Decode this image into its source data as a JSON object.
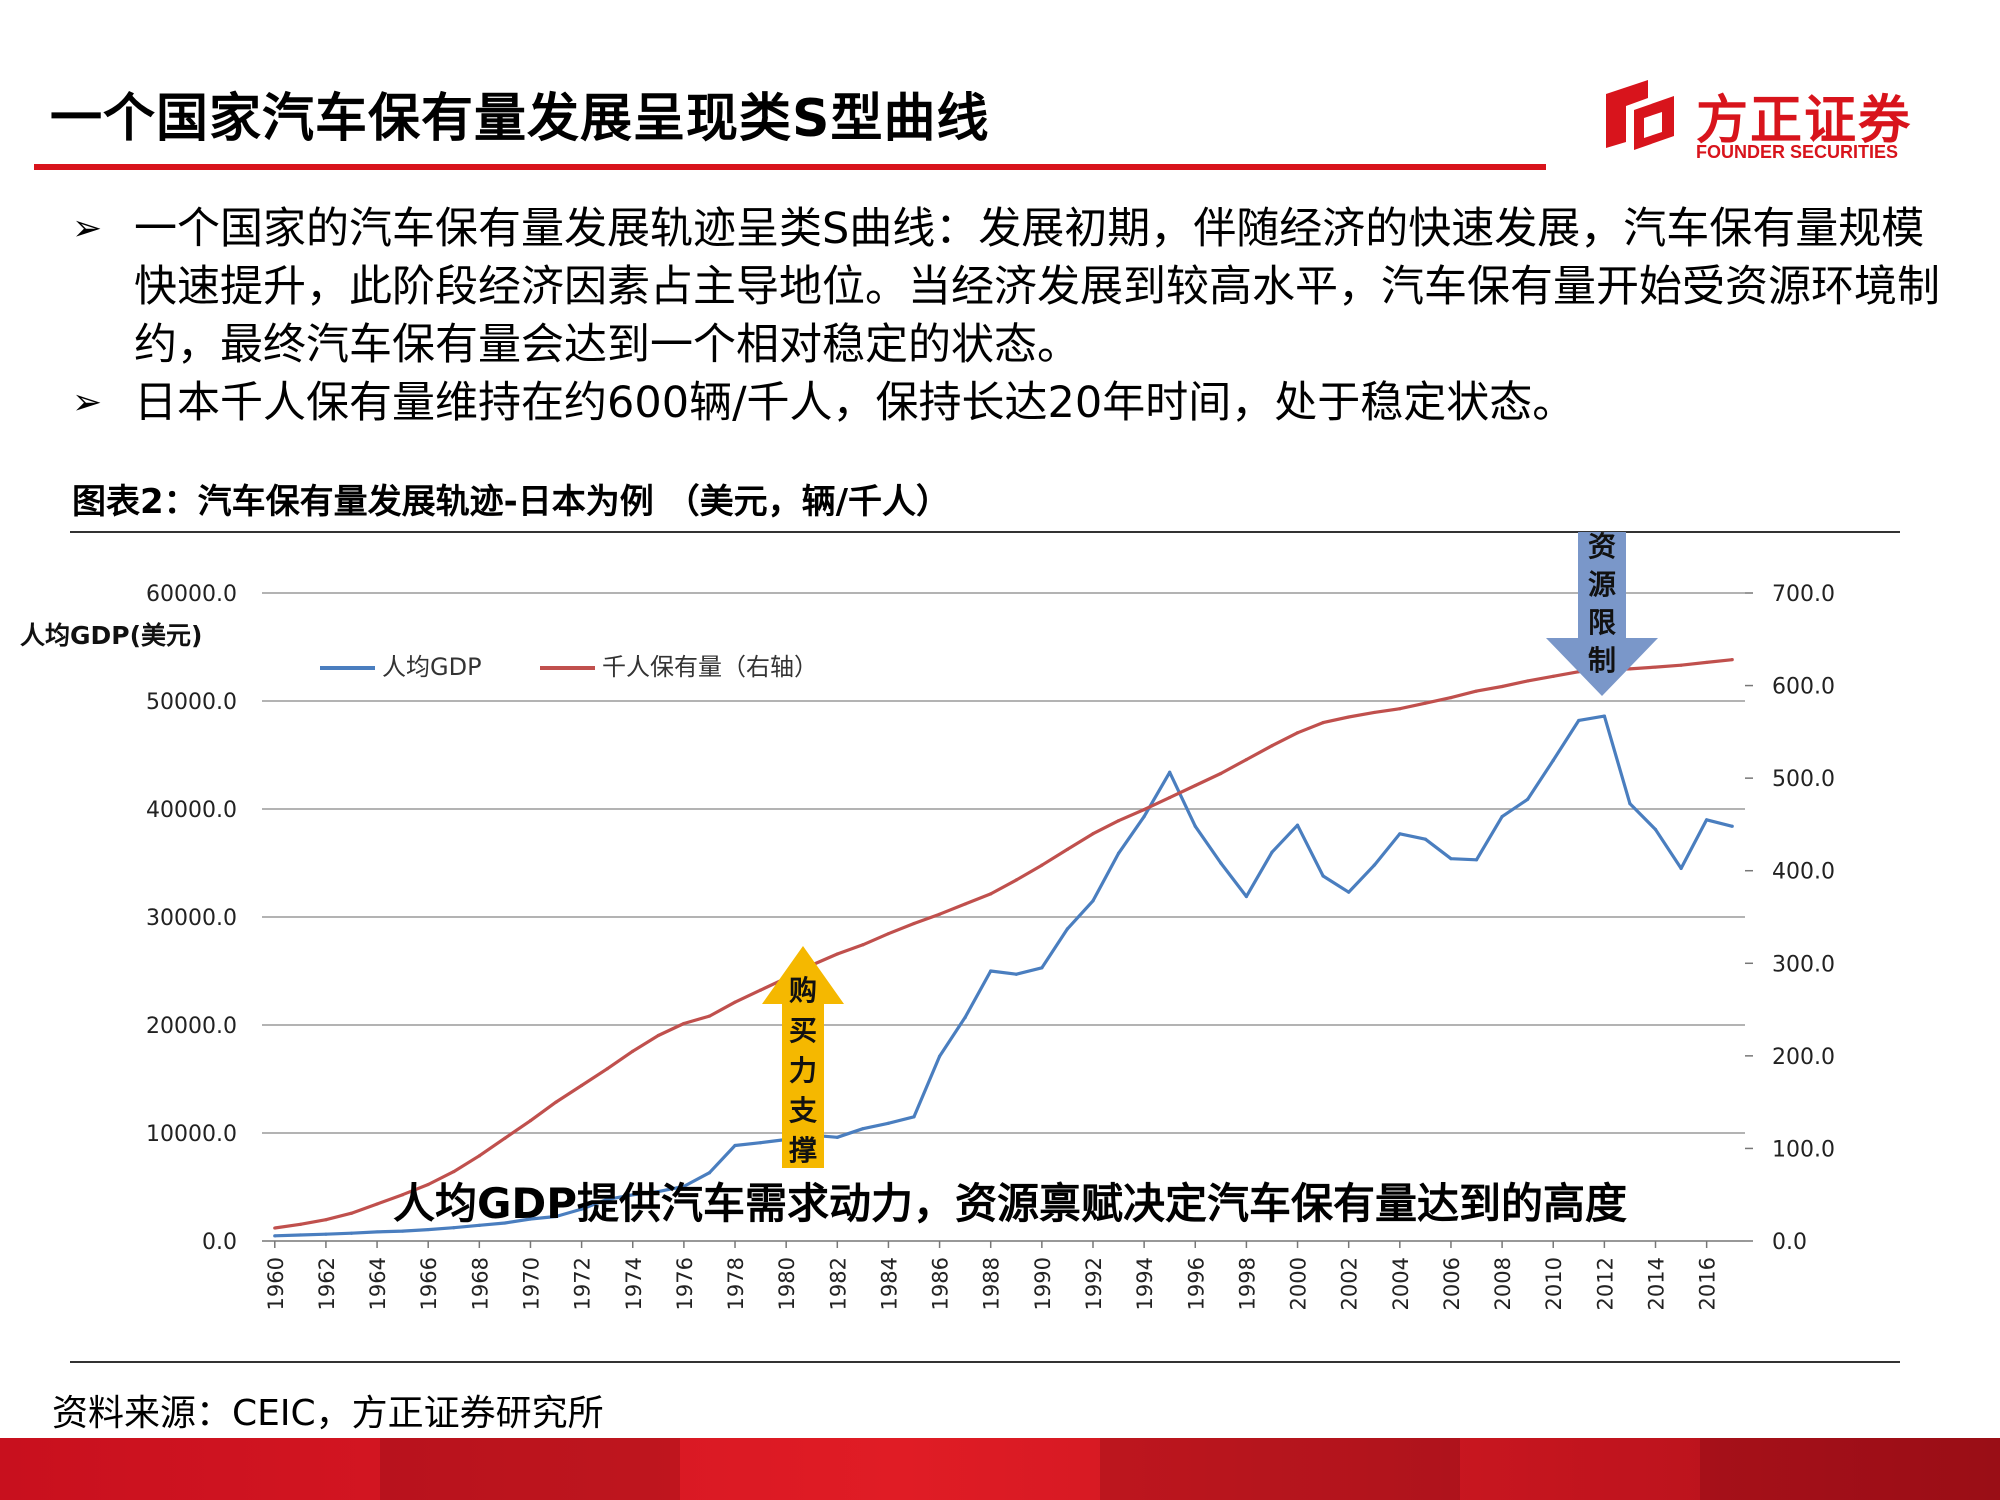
{
  "header": {
    "title": "一个国家汽车保有量发展呈现类S型曲线",
    "logo_cn": "方正证券",
    "logo_en": "FOUNDER SECURITIES"
  },
  "bullets": [
    "一个国家的汽车保有量发展轨迹呈类S曲线：发展初期，伴随经济的快速发展，汽车保有量规模快速提升，此阶段经济因素占主导地位。当经济发展到较高水平，汽车保有量开始受资源环境制约，最终汽车保有量会达到一个相对稳定的状态。",
    "日本千人保有量维持在约600辆/千人，保持长达20年时间，处于稳定状态。"
  ],
  "bullet_mark": "➢",
  "figure_caption": "图表2：汽车保有量发展轨迹-日本为例 （美元，辆/千人）",
  "source": "资料来源：CEIC，方正证券研究所",
  "colors": {
    "accent": "#d8141c",
    "gdp": "#4a7ebf",
    "cars": "#c0504d",
    "arrow_up": "#f5b800",
    "arrow_down": "#7a97c9"
  },
  "chart_data": {
    "type": "line",
    "title": "",
    "ylabel_left": "人均GDP(美元)",
    "ylabel_right": "",
    "ylim_left": [
      0,
      60000
    ],
    "ylim_right": [
      0,
      700
    ],
    "yticks_left": [
      "60000.0",
      "50000.0",
      "40000.0",
      "30000.0",
      "20000.0",
      "10000.0",
      "0.0"
    ],
    "yticks_right": [
      "700.0",
      "600.0",
      "500.0",
      "400.0",
      "300.0",
      "200.0",
      "100.0",
      "0.0"
    ],
    "x": [
      1960,
      1961,
      1962,
      1963,
      1964,
      1965,
      1966,
      1967,
      1968,
      1969,
      1970,
      1971,
      1972,
      1973,
      1974,
      1975,
      1976,
      1977,
      1978,
      1979,
      1980,
      1981,
      1982,
      1983,
      1984,
      1985,
      1986,
      1987,
      1988,
      1989,
      1990,
      1991,
      1992,
      1993,
      1994,
      1995,
      1996,
      1997,
      1998,
      1999,
      2000,
      2001,
      2002,
      2003,
      2004,
      2005,
      2006,
      2007,
      2008,
      2009,
      2010,
      2011,
      2012,
      2013,
      2014,
      2015,
      2016,
      2017
    ],
    "xtick_labels": [
      "1960",
      "1962",
      "1964",
      "1966",
      "1968",
      "1970",
      "1972",
      "1974",
      "1976",
      "1978",
      "1980",
      "1982",
      "1984",
      "1986",
      "1988",
      "1990",
      "1992",
      "1994",
      "1996",
      "1998",
      "2000",
      "2002",
      "2004",
      "2006",
      "2008",
      "2010",
      "2012",
      "2014",
      "2016"
    ],
    "grid": true,
    "legend_position": "top-left",
    "series": [
      {
        "name": "人均GDP",
        "axis": "left",
        "color": "#4a7ebf",
        "values": [
          480,
          560,
          630,
          720,
          840,
          920,
          1060,
          1230,
          1450,
          1670,
          2040,
          2270,
          2950,
          3850,
          4280,
          4570,
          5060,
          6320,
          8840,
          9100,
          9400,
          9800,
          9600,
          10400,
          10900,
          11500,
          17100,
          20700,
          25000,
          24700,
          25300,
          28900,
          31500,
          35900,
          39300,
          43400,
          38400,
          35000,
          31900,
          36000,
          38500,
          33800,
          32300,
          34800,
          37700,
          37200,
          35400,
          35300,
          39300,
          40900,
          44500,
          48200,
          48600,
          40500,
          38100,
          34500,
          39000,
          38400
        ]
      },
      {
        "name": "千人保有量（右轴）",
        "axis": "right",
        "color": "#c0504d",
        "values": [
          14,
          18,
          23,
          30,
          40,
          50,
          61,
          75,
          92,
          111,
          130,
          150,
          168,
          186,
          205,
          222,
          235,
          243,
          258,
          271,
          284,
          298,
          310,
          320,
          332,
          343,
          353,
          364,
          375,
          390,
          406,
          423,
          440,
          454,
          466,
          479,
          492,
          505,
          520,
          535,
          549,
          560,
          566,
          571,
          575,
          581,
          587,
          594,
          599,
          605,
          610,
          615,
          617,
          618,
          620,
          622,
          625,
          628
        ]
      }
    ],
    "annotations": {
      "up_arrow": "购买力支撑",
      "down_arrow": "资源限制",
      "center_text": "人均GDP提供汽车需求动力，资源禀赋决定汽车保有量达到的高度"
    }
  }
}
